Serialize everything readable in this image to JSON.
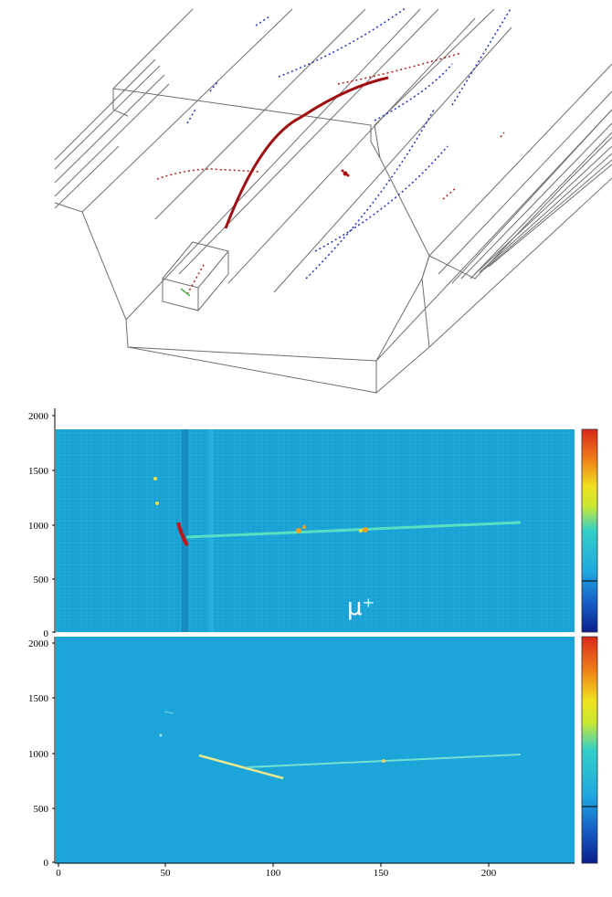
{
  "figure": {
    "event_display": {
      "colors": {
        "detector_wire": "#6f6f6f",
        "track_red": "#a01010",
        "track_blue": "#2233bb",
        "track_green": "#22aa22"
      }
    },
    "panels": [
      {
        "id": "top_panel",
        "particle_label": "μ⁺",
        "x_range": [
          0,
          240
        ],
        "y_range": [
          0,
          2048
        ],
        "y_ticks": [
          "0",
          "500",
          "1000",
          "1500",
          "2000"
        ],
        "background": "#1aa3d6",
        "colorbar": {
          "colors": [
            "#0a1f8c",
            "#1560c8",
            "#20a8e0",
            "#33d0c8",
            "#c8e832",
            "#f0e020",
            "#f08018",
            "#d82818"
          ],
          "marker_fraction": 0.25
        }
      },
      {
        "id": "bottom_panel",
        "particle_label": "",
        "x_range": [
          0,
          240
        ],
        "y_range": [
          0,
          2048
        ],
        "y_ticks": [
          "0",
          "500",
          "1000",
          "1500",
          "2000"
        ],
        "x_ticks": [
          "0",
          "50",
          "100",
          "150",
          "200"
        ],
        "background": "#1aa3d6",
        "colorbar": {
          "colors": [
            "#0a1f8c",
            "#1560c8",
            "#20a8e0",
            "#33d0c8",
            "#c8e832",
            "#f0e020",
            "#f08018",
            "#d82818"
          ],
          "marker_fraction": 0.25
        }
      }
    ]
  }
}
